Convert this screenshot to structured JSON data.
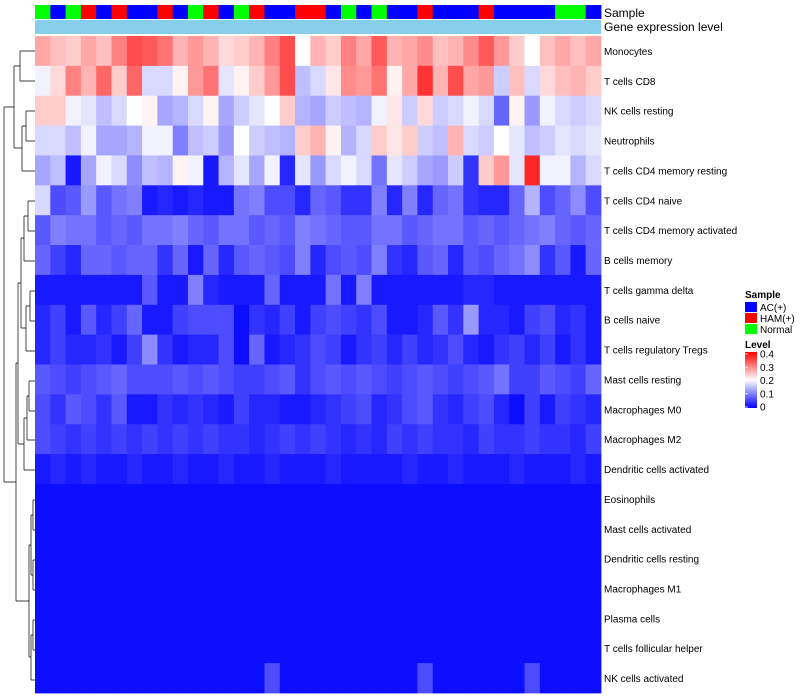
{
  "chart_data": {
    "type": "heatmap",
    "annotations": {
      "sample_label": "Sample",
      "expression_label": "Gene expression level"
    },
    "sample_legend": {
      "title": "Sample",
      "entries": [
        {
          "name": "AC(+)",
          "color": "#0000ff"
        },
        {
          "name": "HAM(+)",
          "color": "#ff0000"
        },
        {
          "name": "Normal",
          "color": "#00ff00"
        }
      ]
    },
    "level_legend": {
      "title": "Level",
      "ticks": [
        "0.4",
        "0.3",
        "0.2",
        "0.1",
        "0"
      ],
      "tick_values": [
        0.4,
        0.3,
        0.2,
        0.1,
        0
      ],
      "range": [
        0,
        0.4
      ],
      "colors": [
        "#0000ff",
        "#ffffff",
        "#ff0000"
      ]
    },
    "sample_groups": [
      2,
      0,
      2,
      1,
      0,
      1,
      0,
      0,
      1,
      0,
      2,
      1,
      0,
      2,
      1,
      0,
      0,
      1,
      1,
      0,
      2,
      0,
      2,
      0,
      0,
      1,
      0,
      0,
      0,
      1,
      0,
      0,
      0,
      0,
      2,
      2,
      0
    ],
    "rows": [
      "Monocytes",
      "T cells CD8",
      "NK cells resting",
      "Neutrophils",
      "T cells CD4 memory resting",
      "T cells CD4 naive",
      "T cells CD4 memory activated",
      "B cells memory",
      "T cells gamma delta",
      "B cells naive",
      "T cells regulatory  Tregs",
      "Mast cells resting",
      "Macrophages M0",
      "Macrophages M2",
      "Dendritic cells activated",
      "Eosinophils",
      "Mast cells activated",
      "Dendritic cells resting",
      "Macrophages M1",
      "Plasma cells",
      "T cells follicular helper",
      "NK cells activated"
    ],
    "values": [
      [
        0.27,
        0.25,
        0.24,
        0.27,
        0.25,
        0.3,
        0.34,
        0.33,
        0.31,
        0.26,
        0.28,
        0.26,
        0.23,
        0.24,
        0.26,
        0.3,
        0.34,
        0.2,
        0.26,
        0.24,
        0.3,
        0.27,
        0.33,
        0.26,
        0.27,
        0.29,
        0.25,
        0.26,
        0.29,
        0.33,
        0.28,
        0.24,
        0.2,
        0.25,
        0.27,
        0.25,
        0.27
      ],
      [
        0.19,
        0.23,
        0.3,
        0.26,
        0.32,
        0.24,
        0.32,
        0.17,
        0.17,
        0.21,
        0.28,
        0.31,
        0.18,
        0.21,
        0.24,
        0.28,
        0.34,
        0.15,
        0.17,
        0.22,
        0.29,
        0.28,
        0.31,
        0.21,
        0.27,
        0.36,
        0.26,
        0.34,
        0.27,
        0.28,
        0.16,
        0.25,
        0.17,
        0.23,
        0.25,
        0.26,
        0.24
      ],
      [
        0.24,
        0.24,
        0.19,
        0.18,
        0.15,
        0.17,
        0.2,
        0.21,
        0.13,
        0.14,
        0.17,
        0.21,
        0.13,
        0.16,
        0.18,
        0.2,
        0.24,
        0.14,
        0.13,
        0.16,
        0.15,
        0.14,
        0.19,
        0.22,
        0.16,
        0.23,
        0.16,
        0.17,
        0.19,
        0.17,
        0.08,
        0.21,
        0.12,
        0.19,
        0.17,
        0.16,
        0.17
      ],
      [
        0.17,
        0.17,
        0.15,
        0.19,
        0.13,
        0.13,
        0.14,
        0.19,
        0.19,
        0.1,
        0.15,
        0.16,
        0.12,
        0.2,
        0.16,
        0.15,
        0.14,
        0.24,
        0.26,
        0.21,
        0.14,
        0.17,
        0.24,
        0.22,
        0.24,
        0.16,
        0.15,
        0.26,
        0.17,
        0.16,
        0.2,
        0.18,
        0.15,
        0.16,
        0.18,
        0.17,
        0.18
      ],
      [
        0.13,
        0.15,
        0.02,
        0.13,
        0.19,
        0.17,
        0.11,
        0.15,
        0.14,
        0.21,
        0.19,
        0.02,
        0.14,
        0.18,
        0.13,
        0.19,
        0.03,
        0.18,
        0.12,
        0.17,
        0.19,
        0.17,
        0.09,
        0.18,
        0.16,
        0.13,
        0.12,
        0.16,
        0.04,
        0.24,
        0.28,
        0.18,
        0.37,
        0.19,
        0.19,
        0.14,
        0.17
      ],
      [
        0.17,
        0.06,
        0.07,
        0.12,
        0.07,
        0.09,
        0.1,
        0.02,
        0.03,
        0.02,
        0.03,
        0.02,
        0.02,
        0.09,
        0.1,
        0.06,
        0.06,
        0.03,
        0.08,
        0.07,
        0.04,
        0.04,
        0.1,
        0.03,
        0.1,
        0.03,
        0.08,
        0.09,
        0.04,
        0.03,
        0.03,
        0.08,
        0.14,
        0.06,
        0.08,
        0.11,
        0.06
      ],
      [
        0.07,
        0.1,
        0.09,
        0.09,
        0.07,
        0.08,
        0.07,
        0.09,
        0.09,
        0.1,
        0.08,
        0.07,
        0.09,
        0.09,
        0.07,
        0.08,
        0.07,
        0.1,
        0.09,
        0.08,
        0.07,
        0.07,
        0.09,
        0.09,
        0.07,
        0.08,
        0.09,
        0.09,
        0.07,
        0.08,
        0.07,
        0.08,
        0.09,
        0.1,
        0.08,
        0.07,
        0.08
      ],
      [
        0.08,
        0.05,
        0.03,
        0.08,
        0.08,
        0.07,
        0.08,
        0.08,
        0.04,
        0.08,
        0.02,
        0.08,
        0.03,
        0.07,
        0.08,
        0.07,
        0.06,
        0.1,
        0.03,
        0.06,
        0.07,
        0.06,
        0.1,
        0.04,
        0.03,
        0.07,
        0.08,
        0.03,
        0.07,
        0.06,
        0.08,
        0.09,
        0.11,
        0.04,
        0.07,
        0.02,
        0.08
      ],
      [
        0.02,
        0.02,
        0.02,
        0.02,
        0.02,
        0.02,
        0.02,
        0.07,
        0.02,
        0.02,
        0.1,
        0.03,
        0.02,
        0.02,
        0.02,
        0.08,
        0.02,
        0.02,
        0.02,
        0.09,
        0.02,
        0.1,
        0.02,
        0.02,
        0.02,
        0.02,
        0.02,
        0.02,
        0.03,
        0.03,
        0.02,
        0.02,
        0.02,
        0.02,
        0.02,
        0.02,
        0.02
      ],
      [
        0.03,
        0.05,
        0.02,
        0.07,
        0.03,
        0.05,
        0.08,
        0.02,
        0.02,
        0.05,
        0.06,
        0.06,
        0.06,
        0.01,
        0.04,
        0.03,
        0.05,
        0.02,
        0.05,
        0.06,
        0.05,
        0.04,
        0.06,
        0.02,
        0.02,
        0.03,
        0.07,
        0.04,
        0.12,
        0.03,
        0.03,
        0.02,
        0.05,
        0.06,
        0.03,
        0.04,
        0.02
      ],
      [
        0.03,
        0.05,
        0.03,
        0.03,
        0.04,
        0.02,
        0.05,
        0.11,
        0.04,
        0.02,
        0.03,
        0.03,
        0.06,
        0.01,
        0.08,
        0.02,
        0.03,
        0.04,
        0.06,
        0.05,
        0.02,
        0.04,
        0.05,
        0.03,
        0.05,
        0.03,
        0.04,
        0.06,
        0.03,
        0.02,
        0.04,
        0.05,
        0.03,
        0.05,
        0.02,
        0.04,
        0.02
      ],
      [
        0.07,
        0.06,
        0.05,
        0.06,
        0.07,
        0.08,
        0.06,
        0.06,
        0.06,
        0.07,
        0.06,
        0.07,
        0.06,
        0.05,
        0.05,
        0.06,
        0.07,
        0.04,
        0.06,
        0.07,
        0.06,
        0.07,
        0.06,
        0.05,
        0.06,
        0.07,
        0.06,
        0.05,
        0.06,
        0.07,
        0.09,
        0.05,
        0.05,
        0.07,
        0.06,
        0.05,
        0.08
      ],
      [
        0.06,
        0.04,
        0.07,
        0.06,
        0.04,
        0.07,
        0.02,
        0.02,
        0.04,
        0.03,
        0.04,
        0.03,
        0.02,
        0.05,
        0.03,
        0.03,
        0.02,
        0.02,
        0.03,
        0.04,
        0.05,
        0.06,
        0.03,
        0.04,
        0.06,
        0.07,
        0.04,
        0.03,
        0.05,
        0.06,
        0.03,
        0.01,
        0.05,
        0.02,
        0.05,
        0.04,
        0.03
      ],
      [
        0.06,
        0.05,
        0.04,
        0.05,
        0.04,
        0.05,
        0.04,
        0.05,
        0.04,
        0.05,
        0.04,
        0.05,
        0.04,
        0.04,
        0.03,
        0.04,
        0.05,
        0.04,
        0.05,
        0.04,
        0.03,
        0.04,
        0.03,
        0.05,
        0.04,
        0.05,
        0.04,
        0.04,
        0.03,
        0.05,
        0.04,
        0.04,
        0.05,
        0.04,
        0.04,
        0.03,
        0.05
      ],
      [
        0.02,
        0.03,
        0.02,
        0.03,
        0.02,
        0.02,
        0.03,
        0.02,
        0.02,
        0.03,
        0.02,
        0.02,
        0.03,
        0.02,
        0.02,
        0.03,
        0.02,
        0.02,
        0.02,
        0.03,
        0.02,
        0.02,
        0.02,
        0.02,
        0.03,
        0.02,
        0.02,
        0.03,
        0.02,
        0.02,
        0.02,
        0.03,
        0.02,
        0.02,
        0.02,
        0.03,
        0.02
      ],
      [
        0.01,
        0.01,
        0.01,
        0.01,
        0.01,
        0.01,
        0.01,
        0.01,
        0.01,
        0.01,
        0.01,
        0.01,
        0.01,
        0.01,
        0.01,
        0.01,
        0.01,
        0.01,
        0.01,
        0.01,
        0.01,
        0.01,
        0.01,
        0.01,
        0.01,
        0.01,
        0.01,
        0.01,
        0.01,
        0.01,
        0.01,
        0.01,
        0.01,
        0.01,
        0.01,
        0.01,
        0.01
      ],
      [
        0.01,
        0.01,
        0.01,
        0.01,
        0.01,
        0.01,
        0.01,
        0.01,
        0.01,
        0.01,
        0.01,
        0.01,
        0.01,
        0.01,
        0.01,
        0.01,
        0.01,
        0.01,
        0.01,
        0.01,
        0.01,
        0.01,
        0.01,
        0.01,
        0.01,
        0.01,
        0.01,
        0.01,
        0.01,
        0.01,
        0.01,
        0.01,
        0.01,
        0.01,
        0.01,
        0.01,
        0.01
      ],
      [
        0.01,
        0.01,
        0.01,
        0.01,
        0.01,
        0.01,
        0.01,
        0.01,
        0.01,
        0.01,
        0.01,
        0.01,
        0.01,
        0.01,
        0.01,
        0.01,
        0.01,
        0.01,
        0.01,
        0.01,
        0.01,
        0.01,
        0.01,
        0.01,
        0.01,
        0.01,
        0.01,
        0.01,
        0.01,
        0.01,
        0.01,
        0.01,
        0.01,
        0.01,
        0.01,
        0.01,
        0.01
      ],
      [
        0.01,
        0.01,
        0.01,
        0.01,
        0.01,
        0.01,
        0.01,
        0.01,
        0.01,
        0.01,
        0.01,
        0.01,
        0.01,
        0.01,
        0.01,
        0.01,
        0.01,
        0.01,
        0.01,
        0.01,
        0.01,
        0.01,
        0.01,
        0.01,
        0.01,
        0.01,
        0.01,
        0.01,
        0.01,
        0.01,
        0.01,
        0.01,
        0.01,
        0.01,
        0.01,
        0.01,
        0.01
      ],
      [
        0.01,
        0.01,
        0.01,
        0.01,
        0.01,
        0.01,
        0.01,
        0.01,
        0.01,
        0.01,
        0.01,
        0.01,
        0.01,
        0.01,
        0.01,
        0.01,
        0.01,
        0.01,
        0.01,
        0.01,
        0.01,
        0.01,
        0.01,
        0.01,
        0.01,
        0.01,
        0.01,
        0.01,
        0.01,
        0.01,
        0.01,
        0.01,
        0.01,
        0.01,
        0.01,
        0.01,
        0.01
      ],
      [
        0.01,
        0.01,
        0.01,
        0.01,
        0.01,
        0.01,
        0.01,
        0.01,
        0.01,
        0.01,
        0.01,
        0.01,
        0.01,
        0.01,
        0.01,
        0.01,
        0.01,
        0.01,
        0.01,
        0.01,
        0.01,
        0.01,
        0.01,
        0.01,
        0.01,
        0.01,
        0.01,
        0.01,
        0.01,
        0.01,
        0.01,
        0.01,
        0.01,
        0.01,
        0.01,
        0.01,
        0.01
      ],
      [
        0.01,
        0.01,
        0.01,
        0.01,
        0.01,
        0.01,
        0.01,
        0.01,
        0.01,
        0.01,
        0.01,
        0.01,
        0.01,
        0.01,
        0.01,
        0.06,
        0.01,
        0.01,
        0.01,
        0.01,
        0.01,
        0.01,
        0.01,
        0.01,
        0.01,
        0.06,
        0.01,
        0.01,
        0.01,
        0.01,
        0.01,
        0.01,
        0.06,
        0.01,
        0.01,
        0.01,
        0.01
      ]
    ]
  }
}
